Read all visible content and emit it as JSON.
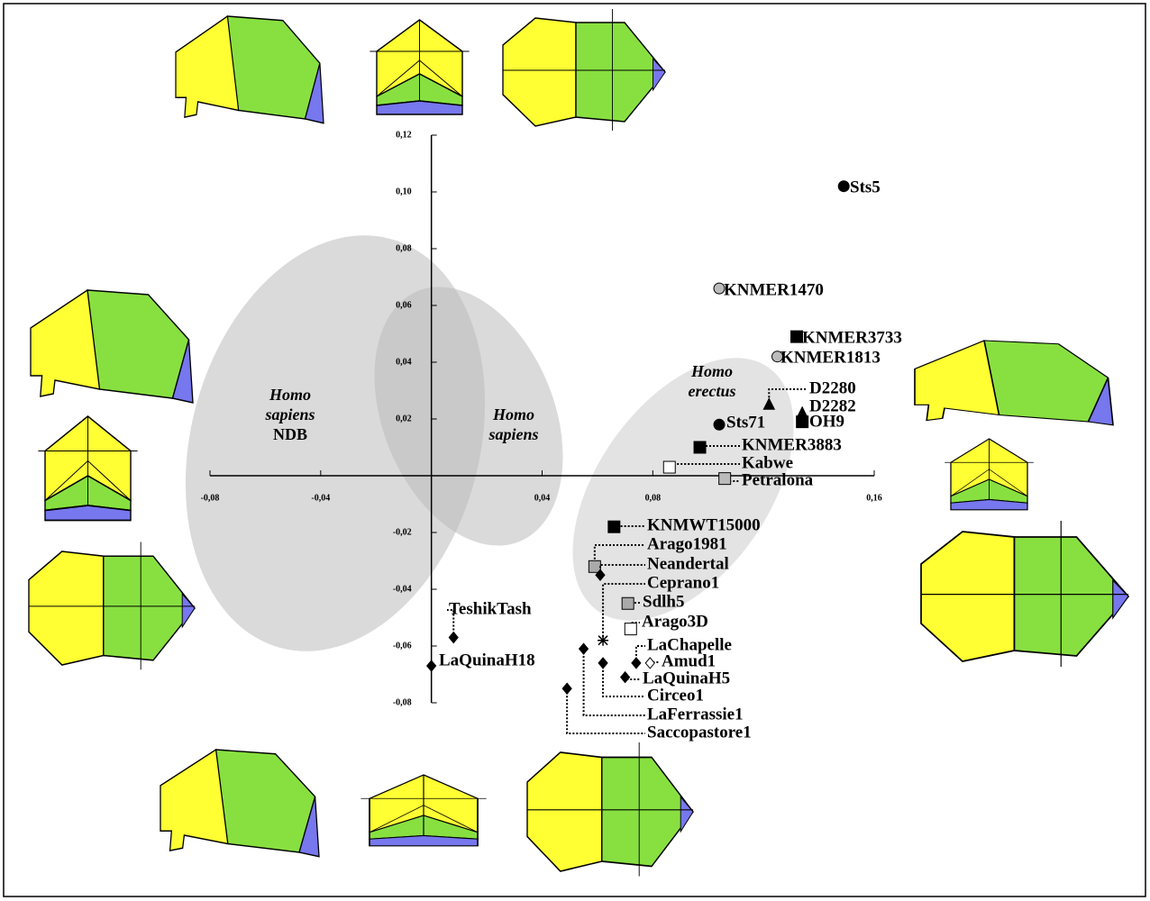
{
  "chart_data": {
    "type": "scatter",
    "xlim": [
      -0.08,
      0.16
    ],
    "ylim": [
      -0.08,
      0.12
    ],
    "xticks": [
      {
        "value": -0.08,
        "label": "-0,08"
      },
      {
        "value": -0.04,
        "label": "-0,04"
      },
      {
        "value": 0.04,
        "label": "0,04"
      },
      {
        "value": 0.08,
        "label": "0,08"
      },
      {
        "value": 0.16,
        "label": "0,16"
      }
    ],
    "yticks": [
      {
        "value": 0.12,
        "label": "0,12"
      },
      {
        "value": 0.1,
        "label": "0,10"
      },
      {
        "value": 0.08,
        "label": "0,08"
      },
      {
        "value": 0.06,
        "label": "0,06"
      },
      {
        "value": 0.04,
        "label": "0,04"
      },
      {
        "value": 0.02,
        "label": "0,02"
      },
      {
        "value": -0.02,
        "label": "-0,02"
      },
      {
        "value": -0.04,
        "label": "-0,04"
      },
      {
        "value": -0.06,
        "label": "-0,06"
      },
      {
        "value": -0.08,
        "label": "-0,08"
      }
    ],
    "annotations": [
      {
        "lines": [
          "Homo",
          "sapiens",
          "NDB"
        ]
      },
      {
        "lines": [
          "Homo",
          "sapiens"
        ]
      },
      {
        "lines": [
          "Homo",
          "erectus"
        ]
      }
    ],
    "points": [
      {
        "label": "Sts5",
        "x": 0.149,
        "y": 0.102,
        "marker": "circle",
        "color": "#000000"
      },
      {
        "label": "KNMER1470",
        "x": 0.104,
        "y": 0.066,
        "marker": "circle",
        "color": "#bbbbbb"
      },
      {
        "label": "KNMER3733",
        "x": 0.132,
        "y": 0.049,
        "marker": "square",
        "color": "#000000"
      },
      {
        "label": "KNMER1813",
        "x": 0.125,
        "y": 0.042,
        "marker": "circle",
        "color": "#bbbbbb"
      },
      {
        "label": "D2280",
        "x": 0.122,
        "y": 0.025,
        "marker": "triangle",
        "color": "#000000"
      },
      {
        "label": "D2282",
        "x": 0.134,
        "y": 0.022,
        "marker": "triangle",
        "color": "#000000"
      },
      {
        "label": "OH9",
        "x": 0.134,
        "y": 0.019,
        "marker": "square",
        "color": "#000000"
      },
      {
        "label": "Sts71",
        "x": 0.104,
        "y": 0.018,
        "marker": "circle",
        "color": "#000000"
      },
      {
        "label": "KNMER3883",
        "x": 0.097,
        "y": 0.01,
        "marker": "square",
        "color": "#000000"
      },
      {
        "label": "Kabwe",
        "x": 0.086,
        "y": 0.003,
        "marker": "square",
        "color": "#ffffff"
      },
      {
        "label": "Petralona",
        "x": 0.106,
        "y": -0.001,
        "marker": "square",
        "color": "#bbbbbb"
      },
      {
        "label": "KNMWT15000",
        "x": 0.066,
        "y": -0.018,
        "marker": "square",
        "color": "#000000"
      },
      {
        "label": "Arago1981",
        "x": 0.059,
        "y": -0.032,
        "marker": "square",
        "color": "#aaaaaa"
      },
      {
        "label": "Neandertal",
        "x": 0.061,
        "y": -0.035,
        "marker": "diamond",
        "color": "#000000"
      },
      {
        "label": "Ceprano1",
        "x": 0.062,
        "y": -0.058,
        "marker": "star",
        "color": "#000000"
      },
      {
        "label": "Sdlh5",
        "x": 0.071,
        "y": -0.045,
        "marker": "square",
        "color": "#aaaaaa"
      },
      {
        "label": "Arago3D",
        "x": 0.072,
        "y": -0.054,
        "marker": "square",
        "color": "#ffffff"
      },
      {
        "label": "LaChapelle",
        "x": 0.074,
        "y": -0.066,
        "marker": "diamond",
        "color": "#000000"
      },
      {
        "label": "Amud1",
        "x": 0.079,
        "y": -0.066,
        "marker": "diamond",
        "color": "#ffffff"
      },
      {
        "label": "LaQuinaH5",
        "x": 0.07,
        "y": -0.071,
        "marker": "diamond",
        "color": "#000000"
      },
      {
        "label": "Circeo1",
        "x": 0.062,
        "y": -0.066,
        "marker": "diamond",
        "color": "#000000"
      },
      {
        "label": "LaFerrassie1",
        "x": 0.055,
        "y": -0.061,
        "marker": "diamond",
        "color": "#000000"
      },
      {
        "label": "Saccopastore1",
        "x": 0.049,
        "y": -0.075,
        "marker": "diamond",
        "color": "#000000"
      },
      {
        "label": "TeshikTash",
        "x": 0.008,
        "y": -0.057,
        "marker": "diamond",
        "color": "#000000"
      },
      {
        "label": "LaQuinaH18",
        "x": 0.0,
        "y": -0.067,
        "marker": "diamond",
        "color": "#000000"
      }
    ]
  }
}
